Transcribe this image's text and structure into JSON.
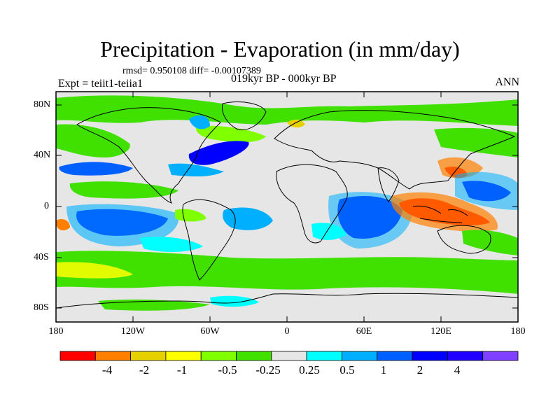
{
  "title": "Precipitation - Evaporation (in mm/day)",
  "stats_line": "rmsd= 0.950108 diff= -0.00107389",
  "experiment": "Expt = teiit1-teiia1",
  "period": "019kyr BP - 000kyr BP",
  "season": "ANN",
  "y_axis_labels": [
    "80N",
    "40N",
    "0",
    "40S",
    "80S"
  ],
  "x_axis_labels": [
    "180",
    "120W",
    "60W",
    "0",
    "60E",
    "120E",
    "180"
  ],
  "colorbar": {
    "labels": [
      "-4",
      "-2",
      "-1",
      "-0.5",
      "-0.25",
      "0.25",
      "0.5",
      "1",
      "2",
      "4"
    ],
    "colors": [
      "#ff0000",
      "#ff8000",
      "#e6d000",
      "#ffff00",
      "#80ff00",
      "#40e000",
      "#e6e6e6",
      "#00ffff",
      "#00b0ff",
      "#0060ff",
      "#0000ff",
      "#2000ff",
      "#8040ff"
    ]
  },
  "map_palette": {
    "neutral": "#e6e6e6",
    "green": "#40e000",
    "light_green": "#80ff00",
    "cyan": "#00ffff",
    "sky": "#00b0ff",
    "blue": "#0060ff",
    "deep_blue": "#0000ff",
    "red": "#ff0000",
    "orange": "#ff8000",
    "yellow": "#ffff00"
  }
}
